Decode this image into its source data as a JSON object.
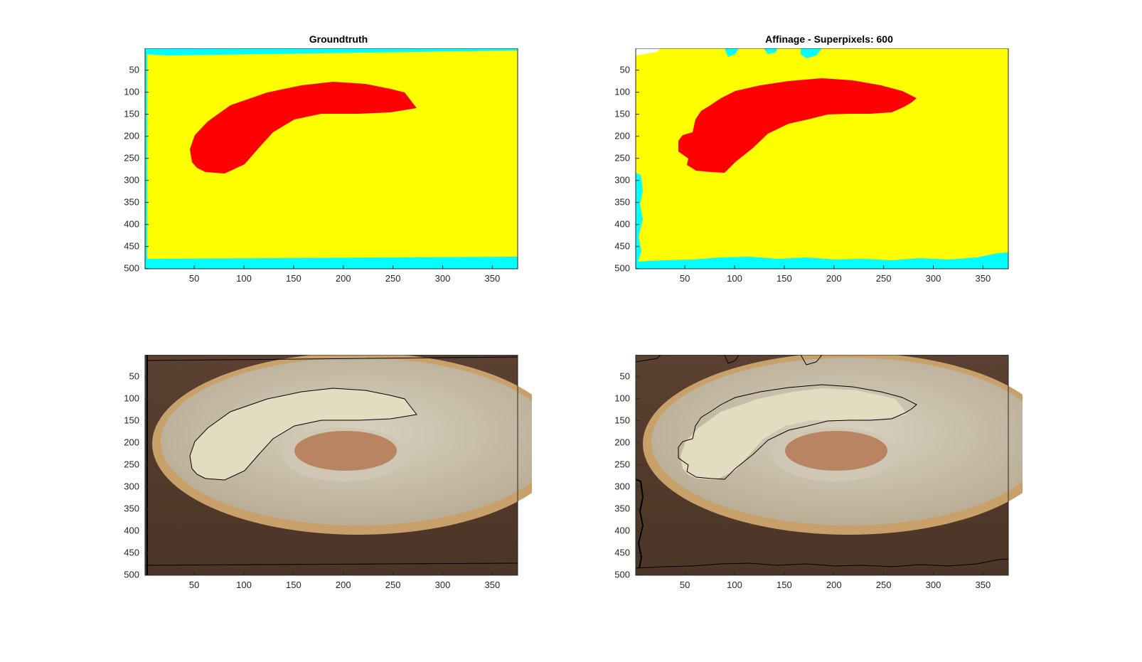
{
  "figure": {
    "panels": [
      {
        "id": "top-left",
        "title": "Groundtruth",
        "kind": "segmentation-mask",
        "mask_colors": {
          "object": "#ff0000",
          "background": "#ffff00",
          "void": "#00ffff"
        }
      },
      {
        "id": "top-right",
        "title": "Affinage - Superpixels: 600",
        "kind": "segmentation-mask",
        "mask_colors": {
          "object": "#ff0000",
          "background": "#ffff00",
          "void": "#00ffff"
        }
      },
      {
        "id": "bottom-left",
        "title": "",
        "kind": "photo-overlay",
        "scene": "banana-on-plate-with-sauce"
      },
      {
        "id": "bottom-right",
        "title": "",
        "kind": "photo-overlay",
        "scene": "banana-on-plate-with-sauce"
      }
    ],
    "axes": {
      "x_ticks": [
        "50",
        "100",
        "150",
        "200",
        "250",
        "300",
        "350"
      ],
      "y_ticks": [
        "50",
        "100",
        "150",
        "200",
        "250",
        "300",
        "350",
        "400",
        "450",
        "500"
      ],
      "x_values": [
        50,
        100,
        150,
        200,
        250,
        300,
        350
      ],
      "y_values": [
        50,
        100,
        150,
        200,
        250,
        300,
        350,
        400,
        450,
        500
      ],
      "x_range": [
        0.5,
        375.5
      ],
      "y_range": [
        0.5,
        500.5
      ]
    }
  }
}
